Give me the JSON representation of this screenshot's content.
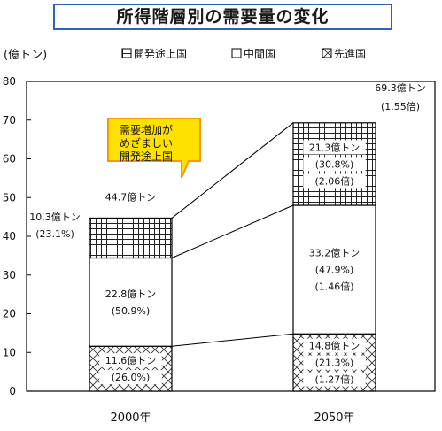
{
  "title": "所得階層別の需要量の変化",
  "unit": "(億トン)",
  "callout": [
    "需要増加が",
    "めざましい",
    "開発途上国"
  ],
  "chart_data": {
    "type": "bar",
    "stacked": true,
    "categories": [
      "2000年",
      "2050年"
    ],
    "ylim": [
      0,
      80
    ],
    "yticks": [
      0,
      10,
      20,
      30,
      40,
      50,
      60,
      70,
      80
    ],
    "grid": false,
    "legend_position": "top",
    "series": [
      {
        "name": "先進国",
        "pattern": "crosshatch",
        "values": [
          11.6,
          14.8
        ],
        "labels": [
          [
            "11.6億トン",
            "(26.0%)"
          ],
          [
            "14.8億トン",
            "(21.3%)",
            "(1.27倍)"
          ]
        ]
      },
      {
        "name": "中間国",
        "pattern": "white",
        "values": [
          22.8,
          33.2
        ],
        "labels": [
          [
            "22.8億トン",
            "(50.9%)"
          ],
          [
            "33.2億トン",
            "(47.9%)",
            "(1.46倍)"
          ]
        ]
      },
      {
        "name": "開発途上国",
        "pattern": "grid",
        "values": [
          10.3,
          21.3
        ],
        "labels": [
          [
            "10.3億トン",
            "(23.1%)"
          ],
          [
            "21.3億トン",
            "(30.8%)",
            "(2.06倍)"
          ]
        ]
      }
    ],
    "legend_order": [
      "開発途上国",
      "中間国",
      "先進国"
    ],
    "totals": [
      [
        "44.7億トン"
      ],
      [
        "69.3億トン",
        "(1.55倍)"
      ]
    ]
  }
}
